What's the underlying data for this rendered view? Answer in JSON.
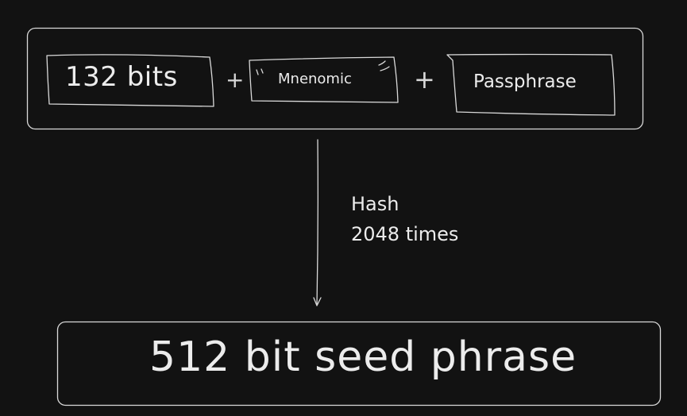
{
  "inputs": {
    "bits_label": "132 bits",
    "mnemonic_label": "Mnenomic",
    "passphrase_label": "Passphrase",
    "plus_1": "+",
    "plus_2": "+"
  },
  "step": {
    "line_1": "Hash",
    "line_2": "2048 times"
  },
  "output": {
    "label": "512 bit seed phrase"
  },
  "colors": {
    "background": "#121212",
    "stroke": "#d9d9d9",
    "text": "#ececec"
  }
}
